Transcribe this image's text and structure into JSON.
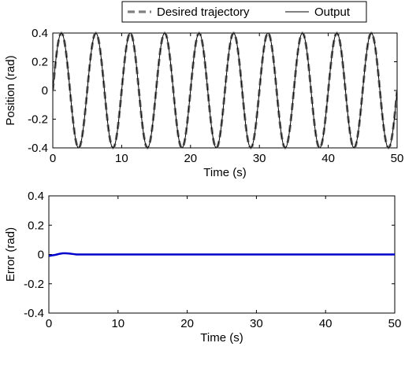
{
  "chart_data": [
    {
      "type": "line",
      "xlabel": "Time (s)",
      "ylabel": "Position (rad)",
      "xlim": [
        0,
        50
      ],
      "ylim": [
        -0.4,
        0.4
      ],
      "xticks": [
        0,
        10,
        20,
        30,
        40,
        50
      ],
      "yticks": [
        -0.4,
        -0.2,
        0,
        0.2,
        0.4
      ],
      "ytick_labels": [
        "-0.4",
        "-0.2",
        "0",
        "0.2",
        "0.4"
      ],
      "grid": false,
      "legend_position": "top-right",
      "series": [
        {
          "name": "Desired trajectory",
          "function": "0.4*sin(2*pi*t/5)",
          "amplitude": 0.4,
          "period": 5,
          "color": "#808080",
          "style": "dashed"
        },
        {
          "name": "Output",
          "function": "0.4*sin(2*pi*t/5)",
          "amplitude": 0.4,
          "period": 5,
          "color": "#000000",
          "style": "solid"
        }
      ]
    },
    {
      "type": "line",
      "xlabel": "Time (s)",
      "ylabel": "Error (rad)",
      "xlim": [
        0,
        50
      ],
      "ylim": [
        -0.4,
        0.4
      ],
      "xticks": [
        0,
        10,
        20,
        30,
        40,
        50
      ],
      "yticks": [
        -0.4,
        -0.2,
        0,
        0.2,
        0.4
      ],
      "ytick_labels": [
        "-0.4",
        "-0.2",
        "0",
        "0.2",
        "0.4"
      ],
      "grid": false,
      "series": [
        {
          "x": [
            0,
            0.5,
            1,
            1.5,
            2,
            2.5,
            3,
            3.5,
            4,
            5,
            10,
            20,
            30,
            40,
            50
          ],
          "y": [
            -0.01,
            -0.006,
            -0.002,
            0.004,
            0.008,
            0.008,
            0.006,
            0.003,
            0.0,
            0.0,
            0.0,
            0.0,
            0.0,
            0.0,
            0.0
          ],
          "color": "#0000cc",
          "style": "solid"
        }
      ]
    }
  ]
}
